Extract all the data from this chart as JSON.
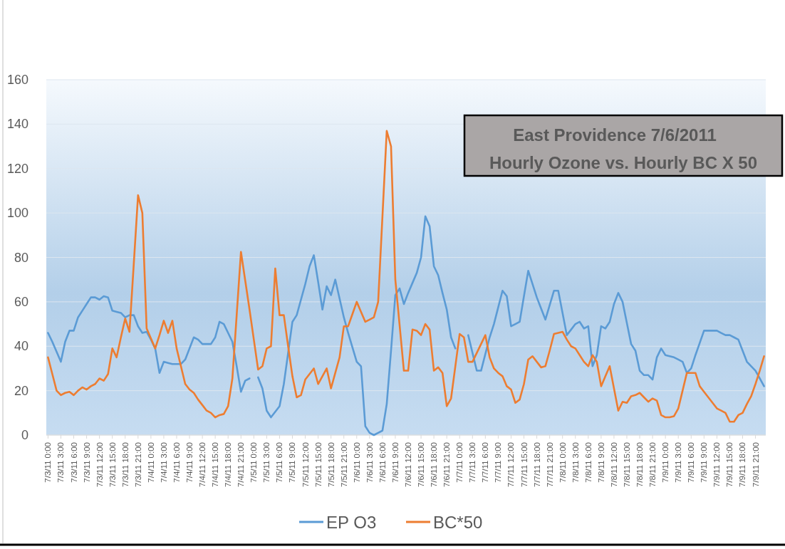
{
  "chart_data": {
    "type": "line",
    "title": "East Providence 7/6/2011",
    "subtitle": "Hourly Ozone vs. Hourly BC X 50",
    "categories": [
      "7/3/11 0:00",
      null,
      null,
      "7/3/11 3:00",
      null,
      null,
      "7/3/11 6:00",
      null,
      null,
      "7/3/11 9:00",
      null,
      null,
      "7/3/11 12:00",
      null,
      null,
      "7/3/11 15:00",
      null,
      null,
      "7/3/11 18:00",
      null,
      null,
      "7/3/11 21:00",
      null,
      null,
      "7/4/11 0:00",
      null,
      null,
      "7/4/11 3:00",
      null,
      null,
      "7/4/11 6:00",
      null,
      null,
      "7/4/11 9:00",
      null,
      null,
      "7/4/11 12:00",
      null,
      null,
      "7/4/11 15:00",
      null,
      null,
      "7/4/11 18:00",
      null,
      null,
      "7/4/11 21:00",
      null,
      null,
      "7/5/11 0:00",
      null,
      null,
      "7/5/11 3:00",
      null,
      null,
      "7/5/11 6:00",
      null,
      null,
      "7/5/11 9:00",
      null,
      null,
      "7/5/11 12:00",
      null,
      null,
      "7/5/11 15:00",
      null,
      null,
      "7/5/11 18:00",
      null,
      null,
      "7/5/11 21:00",
      null,
      null,
      "7/6/11 0:00",
      null,
      null,
      "7/6/11 3:00",
      null,
      null,
      "7/6/11 6:00",
      null,
      null,
      "7/6/11 9:00",
      null,
      null,
      "7/6/11 12:00",
      null,
      null,
      "7/6/11 15:00",
      null,
      null,
      "7/6/11 18:00",
      null,
      null,
      "7/6/11 21:00",
      null,
      null,
      "7/7/11 0:00",
      null,
      null,
      "7/7/11 3:00",
      null,
      null,
      "7/7/11 6:00",
      null,
      null,
      "7/7/11 9:00",
      null,
      null,
      "7/7/11 12:00",
      null,
      null,
      "7/7/11 15:00",
      null,
      null,
      "7/7/11 18:00",
      null,
      null,
      "7/7/11 21:00",
      null,
      null,
      "7/8/11 0:00",
      null,
      null,
      "7/8/11 3:00",
      null,
      null,
      "7/8/11 6:00",
      null,
      null,
      "7/8/11 9:00",
      null,
      null,
      "7/8/11 12:00",
      null,
      null,
      "7/8/11 15:00",
      null,
      null,
      "7/8/11 18:00",
      null,
      null,
      "7/8/11 21:00",
      null,
      null,
      "7/9/11 0:00",
      null,
      null,
      "7/9/11 3:00",
      null,
      null,
      "7/9/11 6:00",
      null,
      null,
      "7/9/11 9:00",
      null,
      null,
      "7/9/11 12:00",
      null,
      null,
      "7/9/11 15:00",
      null,
      null,
      "7/9/11 18:00",
      null,
      null,
      "7/9/11 21:00",
      null,
      null
    ],
    "ylim": [
      0,
      160
    ],
    "yticks": [
      0,
      20,
      40,
      60,
      80,
      100,
      120,
      140,
      160
    ],
    "grid": "y",
    "legend": "bottom",
    "line_style": "solid",
    "marker": "none",
    "series": [
      {
        "name": "EP O3",
        "color": "#5b9bd5",
        "values": [
          46,
          42,
          37.5,
          33,
          42,
          47,
          47,
          53,
          56,
          59,
          62,
          62,
          61,
          62.5,
          62,
          56,
          55.5,
          55,
          53,
          54,
          54,
          49,
          46,
          46.5,
          43,
          39,
          28,
          33,
          32.5,
          32,
          32,
          32,
          34,
          39,
          44,
          43,
          41,
          41,
          41,
          44,
          51,
          50,
          46,
          42,
          31,
          19.5,
          24.5,
          25.5,
          null,
          26,
          21,
          11,
          8,
          10.5,
          13,
          23,
          37,
          51,
          54,
          61,
          68,
          76,
          81,
          69,
          56.5,
          67,
          63,
          70,
          61.5,
          53,
          46,
          39.5,
          33,
          31,
          4,
          1,
          0,
          1,
          2,
          14,
          38,
          63,
          66,
          59,
          64,
          68.5,
          73,
          80,
          98.5,
          94,
          76,
          72,
          64,
          56.5,
          44,
          39,
          null,
          null,
          45,
          37,
          29,
          29,
          36.5,
          44,
          50,
          57.5,
          65,
          62.5,
          49,
          50,
          51,
          62.5,
          74,
          68,
          62,
          57,
          52,
          58.5,
          65,
          65,
          55,
          45,
          47.5,
          50,
          51,
          48,
          49,
          31,
          36,
          49,
          48,
          51,
          59,
          64,
          60,
          50.5,
          41,
          38,
          29,
          27,
          27,
          25,
          35,
          39,
          36,
          35.5,
          35,
          34,
          33,
          28,
          30,
          36,
          41.5,
          47,
          47,
          47,
          47,
          46,
          45,
          45,
          44,
          43,
          38,
          33,
          31,
          29,
          25.5,
          22
        ]
      },
      {
        "name": "BC*50",
        "color": "#ed7d31",
        "values": [
          35,
          27.5,
          20,
          18,
          19,
          19.5,
          18,
          20,
          21.5,
          20.5,
          22,
          23,
          25.5,
          24.5,
          27.5,
          39,
          35,
          44,
          52.5,
          46.5,
          77,
          108,
          100,
          48,
          43.5,
          39,
          45,
          51.5,
          46,
          51.5,
          39,
          31,
          23,
          20.5,
          19,
          16,
          13.5,
          11,
          10,
          8,
          9,
          9.5,
          13,
          25.5,
          54,
          82.5,
          69.5,
          56.5,
          43,
          29.5,
          31,
          39,
          40,
          75,
          54,
          54,
          40,
          26.5,
          17,
          18,
          25,
          27.5,
          30,
          23,
          26.5,
          30,
          21,
          28,
          35,
          49,
          49,
          54.5,
          60,
          55.5,
          51,
          52,
          53,
          60,
          98.5,
          137,
          130,
          70,
          49.5,
          29,
          29,
          47.5,
          47,
          45,
          50,
          47.5,
          29,
          30.5,
          28,
          13,
          16.5,
          31,
          45.5,
          44,
          33,
          33,
          37,
          41,
          45,
          35,
          30,
          28,
          26.5,
          22,
          20.5,
          14.5,
          16,
          23,
          34,
          35.5,
          33,
          30.5,
          31,
          38,
          45.5,
          46,
          46.5,
          43,
          40,
          39,
          36,
          33,
          31,
          36,
          33,
          22,
          26.5,
          31,
          21,
          11,
          15,
          14.5,
          17.5,
          18,
          19,
          17,
          15,
          16.5,
          15.5,
          9,
          8,
          8,
          8.5,
          12,
          20,
          28,
          28,
          28,
          22,
          19.5,
          17,
          14.5,
          12,
          11,
          10,
          6,
          6,
          9,
          10,
          14,
          17.5,
          23,
          29,
          35.5
        ]
      }
    ]
  }
}
